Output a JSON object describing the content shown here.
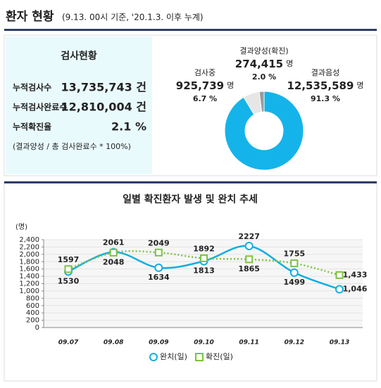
{
  "header": {
    "title": "환자 현황",
    "subtitle": "(9.13. 00시 기준, '20.1.3. 이후 누계)"
  },
  "summary": {
    "title": "검사현황",
    "rows": [
      {
        "label": "누적검사수",
        "value": "13,735,743 건"
      },
      {
        "label": "누적검사완료수",
        "value": "12,810,004 건"
      },
      {
        "label": "누적확진율",
        "value": "2.1 %"
      }
    ],
    "note": "(결과양성 / 총 검사완료수 * 100%)"
  },
  "chart_data": [
    {
      "type": "pie",
      "categories": [
        "검사중",
        "결과양성(확진)",
        "결과음성"
      ],
      "counts": [
        "925,739",
        "274,415",
        "12,535,589"
      ],
      "unit": "명",
      "values": [
        6.7,
        2.0,
        91.3
      ],
      "value_labels": [
        "6.7 %",
        "2.0 %",
        "91.3 %"
      ],
      "colors": [
        "#e6e6e6",
        "#9a9a9a",
        "#14b4ea"
      ]
    },
    {
      "type": "line",
      "title": "일별 확진환자 발생 및 완치 추세",
      "y_label": "(명)",
      "categories": [
        "09.07",
        "09.08",
        "09.09",
        "09.10",
        "09.11",
        "09.12",
        "09.13"
      ],
      "series": [
        {
          "name": "완치(일)",
          "color": "#14aee0",
          "values": [
            1530,
            2061,
            1634,
            1813,
            2227,
            1499,
            1046
          ],
          "value_labels": [
            "1530",
            "2061",
            "1634",
            "1813",
            "2227",
            "1499",
            "1,046"
          ]
        },
        {
          "name": "확진(일)",
          "color": "#7cc242",
          "values": [
            1597,
            2048,
            2049,
            1892,
            1865,
            1755,
            1433
          ],
          "value_labels": [
            "1597",
            "2048",
            "2049",
            "1892",
            "1865",
            "1755",
            "1,433"
          ]
        }
      ],
      "ylim": [
        0,
        2400
      ],
      "yticks": [
        0,
        200,
        400,
        600,
        800,
        {
          "value": 1000,
          "label": "1,000"
        },
        {
          "value": 1200,
          "label": "1,200"
        },
        {
          "value": 1400,
          "label": "1,400"
        },
        {
          "value": 1600,
          "label": "1,600"
        },
        {
          "value": 1800,
          "label": "1,800"
        },
        {
          "value": 2000,
          "label": "2,000"
        },
        {
          "value": 2200,
          "label": "2,200"
        },
        {
          "value": 2400,
          "label": "2,400"
        }
      ],
      "grid": true
    }
  ]
}
